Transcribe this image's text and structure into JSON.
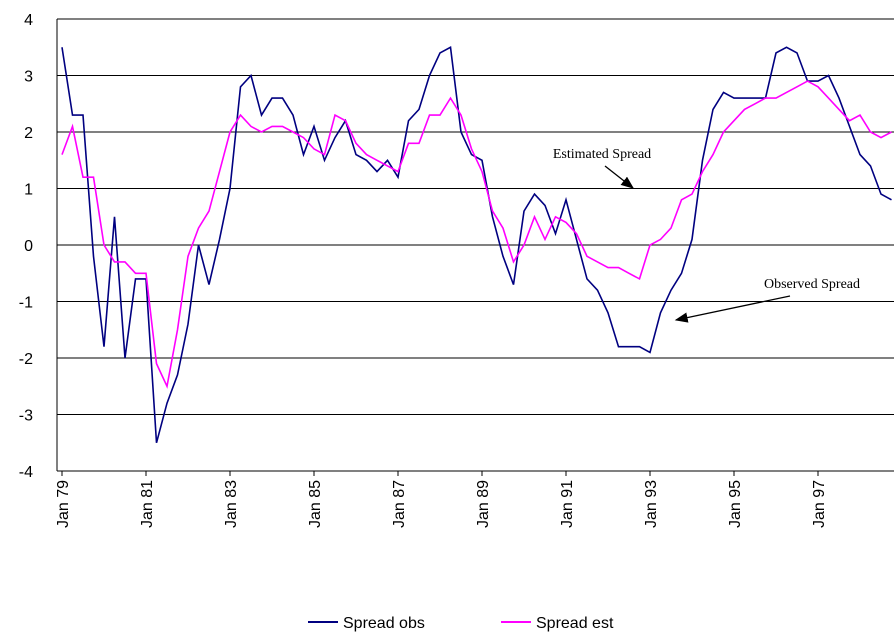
{
  "chart_data": {
    "type": "line",
    "categories": [
      "Jan 79",
      null,
      null,
      null,
      null,
      null,
      null,
      null,
      "Jan 81",
      null,
      null,
      null,
      null,
      null,
      null,
      null,
      "Jan 83",
      null,
      null,
      null,
      null,
      null,
      null,
      null,
      "Jan 85",
      null,
      null,
      null,
      null,
      null,
      null,
      null,
      "Jan 87",
      null,
      null,
      null,
      null,
      null,
      null,
      null,
      "Jan 89",
      null,
      null,
      null,
      null,
      null,
      null,
      null,
      "Jan 91",
      null,
      null,
      null,
      null,
      null,
      null,
      null,
      "Jan 93",
      null,
      null,
      null,
      null,
      null,
      null,
      null,
      "Jan 95",
      null,
      null,
      null,
      null,
      null,
      null,
      null,
      "Jan 97",
      null,
      null,
      null,
      null,
      null,
      null,
      null
    ],
    "series": [
      {
        "name": "Spread obs",
        "color": "#000080",
        "values": [
          3.5,
          2.3,
          2.3,
          -0.2,
          -1.8,
          0.5,
          -2.0,
          -0.6,
          -0.6,
          -3.5,
          -2.8,
          -2.3,
          -1.4,
          0.0,
          -0.7,
          0.1,
          1.0,
          2.8,
          3.0,
          2.3,
          2.6,
          2.6,
          2.3,
          1.6,
          2.1,
          1.5,
          1.9,
          2.2,
          1.6,
          1.5,
          1.3,
          1.5,
          1.2,
          2.2,
          2.4,
          3.0,
          3.4,
          3.5,
          2.0,
          1.6,
          1.5,
          0.5,
          -0.2,
          -0.7,
          0.6,
          0.9,
          0.7,
          0.2,
          0.8,
          0.1,
          -0.6,
          -0.8,
          -1.2,
          -1.8,
          -1.8,
          -1.8,
          -1.9,
          -1.2,
          -0.8,
          -0.5,
          0.1,
          1.5,
          2.4,
          2.7,
          2.6,
          2.6,
          2.6,
          2.6,
          3.4,
          3.5,
          3.4,
          2.9,
          2.9,
          3.0,
          2.6,
          2.1,
          1.6,
          1.4,
          0.9,
          0.8
        ]
      },
      {
        "name": "Spread est",
        "color": "#ff00ff",
        "values": [
          1.6,
          2.1,
          1.2,
          1.2,
          0.0,
          -0.3,
          -0.3,
          -0.5,
          -0.5,
          -2.1,
          -2.5,
          -1.5,
          -0.2,
          0.3,
          0.6,
          1.3,
          2.0,
          2.3,
          2.1,
          2.0,
          2.1,
          2.1,
          2.0,
          1.9,
          1.7,
          1.6,
          2.3,
          2.2,
          1.8,
          1.6,
          1.5,
          1.4,
          1.3,
          1.8,
          1.8,
          2.3,
          2.3,
          2.6,
          2.3,
          1.7,
          1.3,
          0.6,
          0.3,
          -0.3,
          0.0,
          0.5,
          0.1,
          0.5,
          0.4,
          0.2,
          -0.2,
          -0.3,
          -0.4,
          -0.4,
          -0.5,
          -0.6,
          0.0,
          0.1,
          0.3,
          0.8,
          0.9,
          1.3,
          1.6,
          2.0,
          2.2,
          2.4,
          2.5,
          2.6,
          2.6,
          2.7,
          2.8,
          2.9,
          2.8,
          2.6,
          2.4,
          2.2,
          2.3,
          2.0,
          1.9,
          2.0
        ]
      }
    ],
    "ylim": [
      -4,
      4
    ],
    "yticks": [
      -4,
      -3,
      -2,
      -1,
      0,
      1,
      2,
      3,
      4
    ],
    "grid": true,
    "annotations": [
      "Estimated Spread",
      "Observed Spread"
    ]
  }
}
